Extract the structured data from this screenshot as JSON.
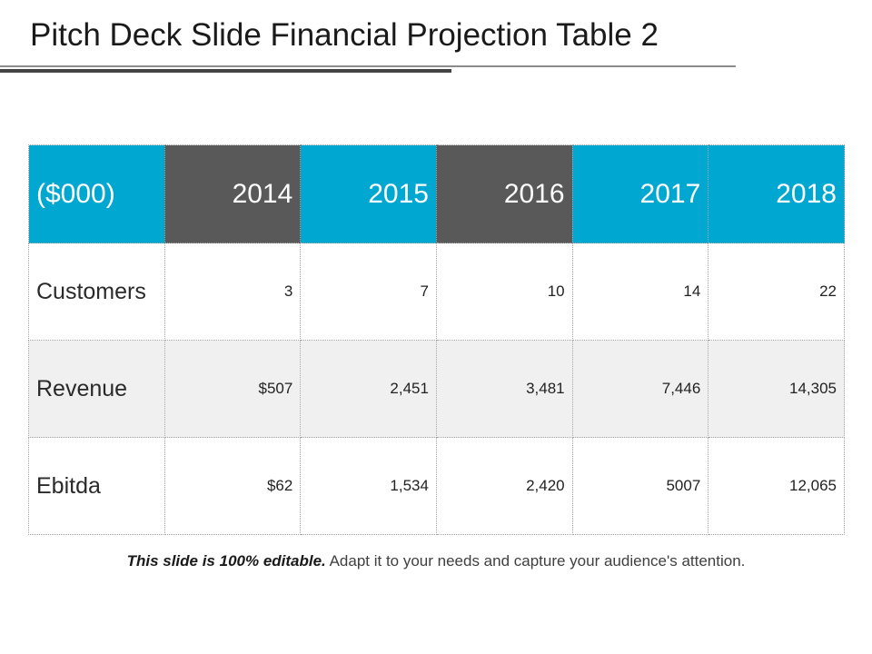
{
  "slide": {
    "title": "Pitch Deck Slide Financial Projection Table 2"
  },
  "table": {
    "header_label": "($000)",
    "years": [
      "2014",
      "2015",
      "2016",
      "2017",
      "2018"
    ],
    "rows": [
      {
        "label": "Customers",
        "values": [
          "3",
          "7",
          "10",
          "14",
          "22"
        ]
      },
      {
        "label": "Revenue",
        "values": [
          "$507",
          "2,451",
          "3,481",
          "7,446",
          "14,305"
        ]
      },
      {
        "label": "Ebitda",
        "values": [
          "$62",
          "1,534",
          "2,420",
          "5007",
          "12,065"
        ]
      }
    ]
  },
  "colors": {
    "header_blue": "#00a7d0",
    "header_gray": "#595959",
    "row_alt": "#f0f0f0"
  },
  "footer": {
    "bold_text": "This slide is 100% editable.",
    "text": " Adapt it to your needs and capture your audience's attention."
  }
}
